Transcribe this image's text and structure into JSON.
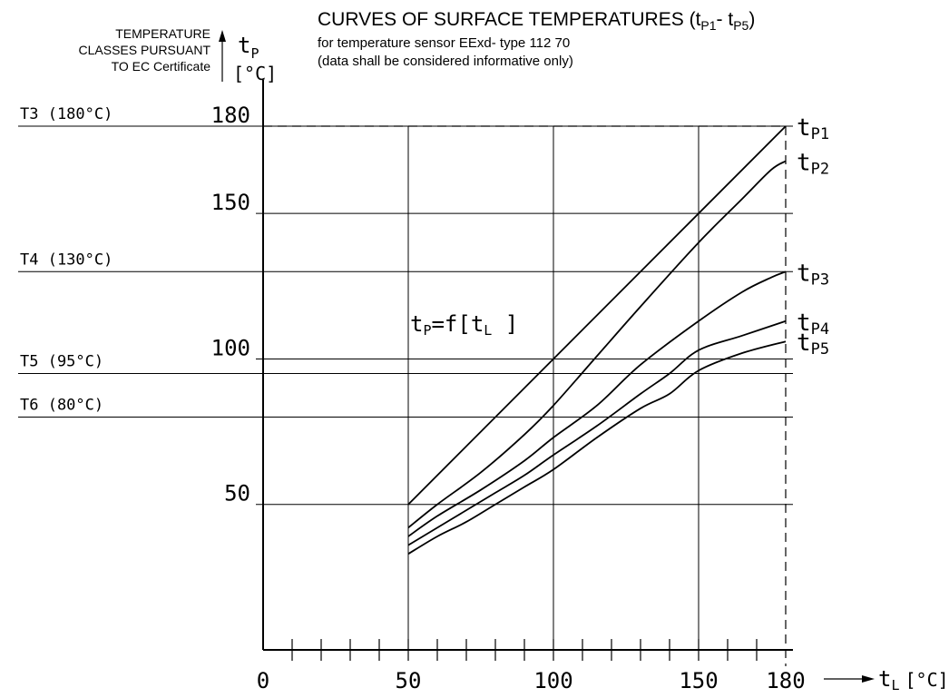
{
  "chart_data": {
    "type": "line",
    "title": "CURVES OF SURFACE TEMPERATURES",
    "title_subscript": "(t",
    "title_p1": "P1",
    "title_dash": "- t",
    "title_p5": "P5",
    "title_close": ")",
    "subtitle_line1": "for temperature sensor EExd- type 112 70",
    "subtitle_line2": "(data shall be considered informative only)",
    "class_header_line1": "TEMPERATURE",
    "class_header_line2": "CLASSES PURSUANT",
    "class_header_line3": "TO EC Certificate",
    "ylabel_symbol": "t",
    "ylabel_sub": "P",
    "ylabel_unit": "[°C]",
    "xlabel_symbol": "t",
    "xlabel_sub": "L",
    "xlabel_unit": "[°C]",
    "formula_t": "t",
    "formula_p": "P",
    "formula_eq": "=f[t",
    "formula_l": "L",
    "formula_close": " ]",
    "xlim": [
      0,
      180
    ],
    "ylim": [
      0,
      180
    ],
    "x_ticks": [
      0,
      50,
      100,
      150,
      180
    ],
    "x_tick_labels": [
      "0",
      "50",
      "100",
      "150",
      "180"
    ],
    "y_ticks": [
      50,
      100,
      150,
      180
    ],
    "y_tick_labels": [
      "50",
      "100",
      "150",
      "180"
    ],
    "temperature_classes": [
      {
        "label": "T3  (180°C)",
        "value": 180
      },
      {
        "label": "T4  (130°C)",
        "value": 130
      },
      {
        "label": "T5  (95°C)",
        "value": 95
      },
      {
        "label": "T6  (80°C)",
        "value": 80
      }
    ],
    "series": [
      {
        "name_t": "t",
        "name_sub": "P1",
        "x": [
          50,
          180
        ],
        "y": [
          50,
          180
        ]
      },
      {
        "name_t": "t",
        "name_sub": "P2",
        "x": [
          50,
          60,
          75,
          90,
          100,
          115,
          130,
          150,
          165,
          175,
          180
        ],
        "y": [
          42,
          50,
          61,
          74,
          84,
          101,
          118,
          140,
          155,
          165,
          168
        ]
      },
      {
        "name_t": "t",
        "name_sub": "P3",
        "x": [
          50,
          60,
          75,
          90,
          100,
          115,
          130,
          150,
          165,
          175,
          180
        ],
        "y": [
          39,
          46,
          55,
          65,
          73,
          84,
          98,
          113,
          123,
          128,
          130
        ]
      },
      {
        "name_t": "t",
        "name_sub": "P4",
        "x": [
          50,
          60,
          70,
          80,
          90,
          100,
          115,
          130,
          140,
          150,
          165,
          180
        ],
        "y": [
          36,
          42,
          48,
          54,
          60,
          67,
          77,
          88,
          95,
          103,
          108,
          113
        ]
      },
      {
        "name_t": "t",
        "name_sub": "P5",
        "x": [
          50,
          60,
          70,
          80,
          90,
          100,
          115,
          130,
          140,
          150,
          165,
          180
        ],
        "y": [
          33,
          39,
          44,
          50,
          56,
          62,
          73,
          83,
          88,
          96,
          102,
          106
        ]
      }
    ]
  }
}
